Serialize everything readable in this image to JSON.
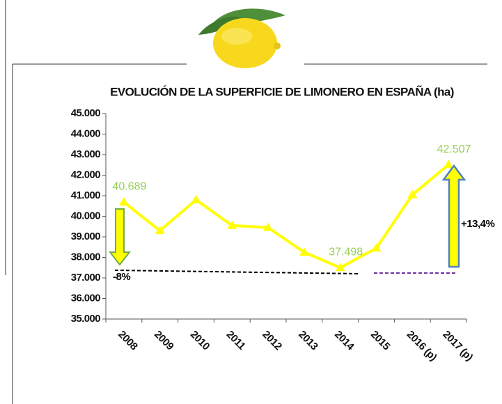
{
  "chart_data": {
    "type": "line",
    "title": "EVOLUCIÓN DE LA SUPERFICIE DE LIMONERO EN ESPAÑA (ha)",
    "categories": [
      "2008",
      "2009",
      "2010",
      "2011",
      "2012",
      "2013",
      "2014",
      "2015",
      "2016 (p)",
      "2017 (p)"
    ],
    "values": [
      40689,
      39300,
      40800,
      39550,
      39450,
      38250,
      37498,
      38450,
      41050,
      42507
    ],
    "value_labels": [
      "40.689",
      null,
      null,
      null,
      null,
      null,
      "37.498",
      null,
      null,
      "42.507"
    ],
    "color": "#ffff00",
    "label_color": "#92d050",
    "ylim": [
      35000,
      45000
    ],
    "yticks": [
      {
        "value": 35000,
        "label": "35.000"
      },
      {
        "value": 36000,
        "label": "36.000"
      },
      {
        "value": 37000,
        "label": "37.000"
      },
      {
        "value": 38000,
        "label": "38.000"
      },
      {
        "value": 39000,
        "label": "39.000"
      },
      {
        "value": 40000,
        "label": "40.000"
      },
      {
        "value": 41000,
        "label": "41.000"
      },
      {
        "value": 42000,
        "label": "42.000"
      },
      {
        "value": 43000,
        "label": "43.000"
      },
      {
        "value": 44000,
        "label": "44.000"
      },
      {
        "value": 45000,
        "label": "45.000"
      }
    ],
    "grid": false,
    "annotations": [
      "-8%",
      "+13,4%"
    ]
  }
}
